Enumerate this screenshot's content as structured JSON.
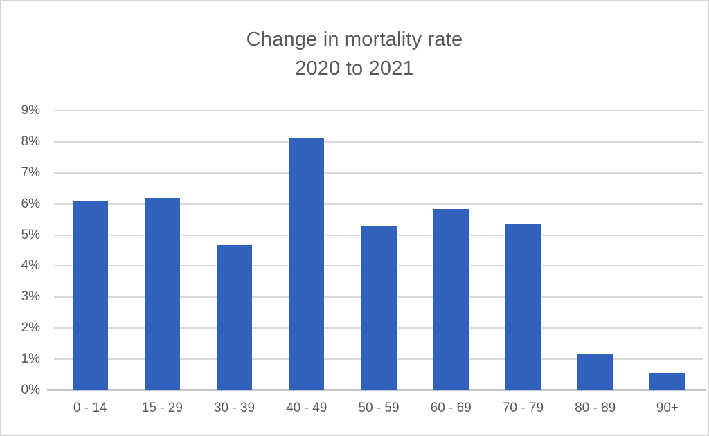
{
  "title": {
    "line1": "Change in mortality rate",
    "line2": "2020 to 2021"
  },
  "chart_data": {
    "type": "bar",
    "title": "Change in mortality rate 2020 to 2021",
    "title_lines": [
      "Change in mortality rate",
      "2020 to 2021"
    ],
    "categories": [
      "0 - 14",
      "15 - 29",
      "30 - 39",
      "40 - 49",
      "50 - 59",
      "60 - 69",
      "70 - 79",
      "80 - 89",
      "90+"
    ],
    "values": [
      6.1,
      6.2,
      4.67,
      8.13,
      5.27,
      5.83,
      5.34,
      1.16,
      0.55
    ],
    "xlabel": "",
    "ylabel": "",
    "ylim": [
      0,
      9
    ],
    "ytick_step": 1,
    "ytick_labels": [
      "0%",
      "1%",
      "2%",
      "3%",
      "4%",
      "5%",
      "6%",
      "7%",
      "8%",
      "9%"
    ],
    "grid": true,
    "legend": false,
    "series_name": ""
  },
  "colors": {
    "bar": "#3062bc",
    "gridline": "#d9d9d9",
    "axis_line": "#c6c6c6",
    "text": "#595959",
    "frame_border": "#d4d4d4",
    "background": "#ffffff"
  }
}
